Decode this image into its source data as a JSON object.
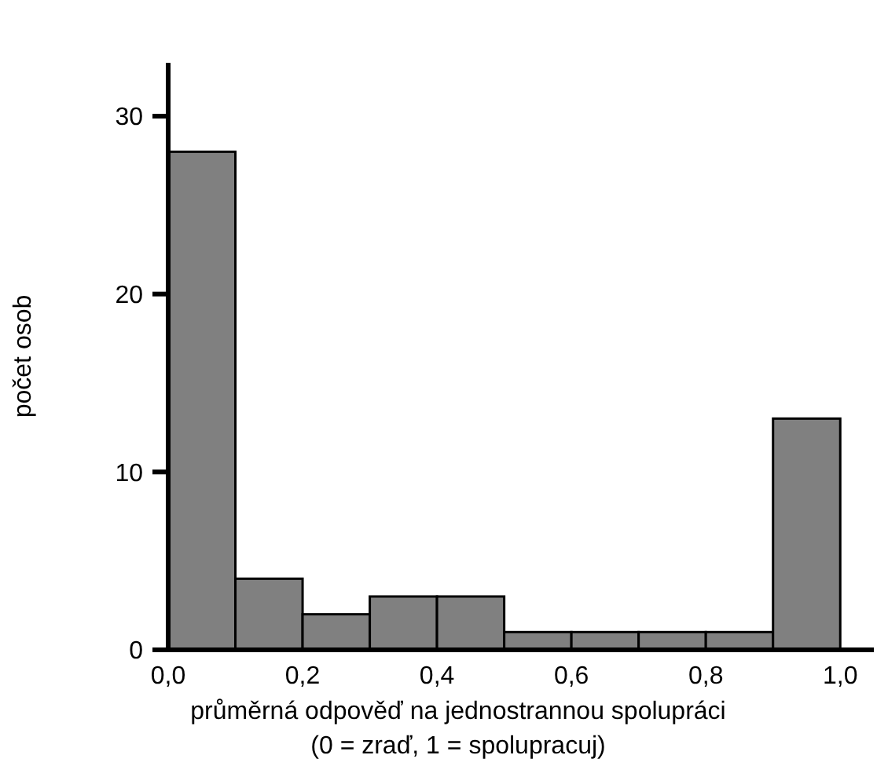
{
  "chart_data": {
    "type": "histogram",
    "xlabel": "průměrná odpověď na jednostrannou spolupráci\n(0 = zraď, 1 = spolupracuj)",
    "ylabel": "počet osob",
    "bins": [
      0,
      0.1,
      0.2,
      0.3,
      0.4,
      0.5,
      0.6,
      0.7,
      0.8,
      0.9,
      1.0
    ],
    "values": [
      28,
      4,
      2,
      3,
      3,
      1,
      1,
      1,
      1,
      13
    ],
    "color": "#808080",
    "xlim": [
      0,
      1.05
    ],
    "xticks": [
      {
        "value": 0,
        "label": "0,0"
      },
      {
        "value": 0.2,
        "label": "0,2"
      },
      {
        "value": 0.4,
        "label": "0,4"
      },
      {
        "value": 0.6,
        "label": "0,6"
      },
      {
        "value": 0.8,
        "label": "0,8"
      },
      {
        "value": 1,
        "label": "1,0"
      }
    ],
    "ylim": [
      0,
      33
    ],
    "yticks": [
      0,
      10,
      20,
      30
    ],
    "grid": false,
    "legend": false
  }
}
